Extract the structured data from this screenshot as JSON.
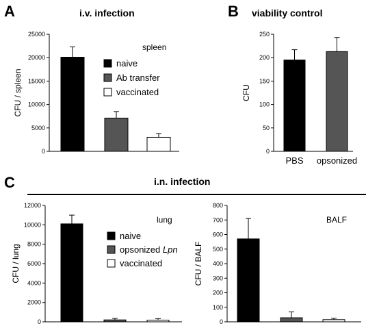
{
  "panels": {
    "A": {
      "letter": "A",
      "title": "i.v. infection"
    },
    "B": {
      "letter": "B",
      "title": "viability control"
    },
    "C": {
      "letter": "C",
      "title": "i.n. infection"
    }
  },
  "chart_data": [
    {
      "type": "bar",
      "id": "spleen",
      "title": "",
      "xlabel": "",
      "ylabel": "CFU / spleen",
      "ylim": [
        0,
        25000
      ],
      "yticks": [
        0,
        5000,
        10000,
        15000,
        20000,
        25000
      ],
      "annotation": "spleen",
      "categories": [
        "naive",
        "Ab transfer",
        "vaccinated"
      ],
      "values": [
        20100,
        7100,
        3000
      ],
      "errors": [
        2200,
        1400,
        800
      ],
      "colors": [
        "#000000",
        "#555555",
        "#ffffff"
      ],
      "legend": [
        "naive",
        "Ab transfer",
        "vaccinated"
      ],
      "show_category_labels": false
    },
    {
      "type": "bar",
      "id": "viability",
      "title": "",
      "xlabel": "",
      "ylabel": "CFU",
      "ylim": [
        0,
        250
      ],
      "yticks": [
        0,
        50,
        100,
        150,
        200,
        250
      ],
      "annotation": "",
      "categories": [
        "PBS",
        "opsonized"
      ],
      "values": [
        195,
        213
      ],
      "errors": [
        22,
        30
      ],
      "colors": [
        "#000000",
        "#555555"
      ],
      "legend": [],
      "show_category_labels": true
    },
    {
      "type": "bar",
      "id": "lung",
      "title": "",
      "xlabel": "",
      "ylabel": "CFU / lung",
      "ylim": [
        0,
        12000
      ],
      "yticks": [
        0,
        2000,
        4000,
        6000,
        8000,
        10000,
        12000
      ],
      "annotation": "lung",
      "categories": [
        "naive",
        "opsonized Lpn",
        "vaccinated"
      ],
      "values": [
        10100,
        200,
        180
      ],
      "errors": [
        900,
        150,
        150
      ],
      "colors": [
        "#000000",
        "#555555",
        "#ffffff"
      ],
      "legend": [
        "naive",
        "opsonized",
        "vaccinated"
      ],
      "legend_italic_suffix": [
        "",
        " Lpn",
        ""
      ],
      "show_category_labels": false
    },
    {
      "type": "bar",
      "id": "balf",
      "title": "",
      "xlabel": "",
      "ylabel": "CFU / BALF",
      "ylim": [
        0,
        800
      ],
      "yticks": [
        0,
        100,
        200,
        300,
        400,
        500,
        600,
        700,
        800
      ],
      "annotation": "BALF",
      "categories": [
        "naive",
        "opsonized Lpn",
        "vaccinated"
      ],
      "values": [
        570,
        28,
        15
      ],
      "errors": [
        140,
        40,
        10
      ],
      "colors": [
        "#000000",
        "#555555",
        "#ffffff"
      ],
      "legend": [],
      "show_category_labels": false
    }
  ]
}
